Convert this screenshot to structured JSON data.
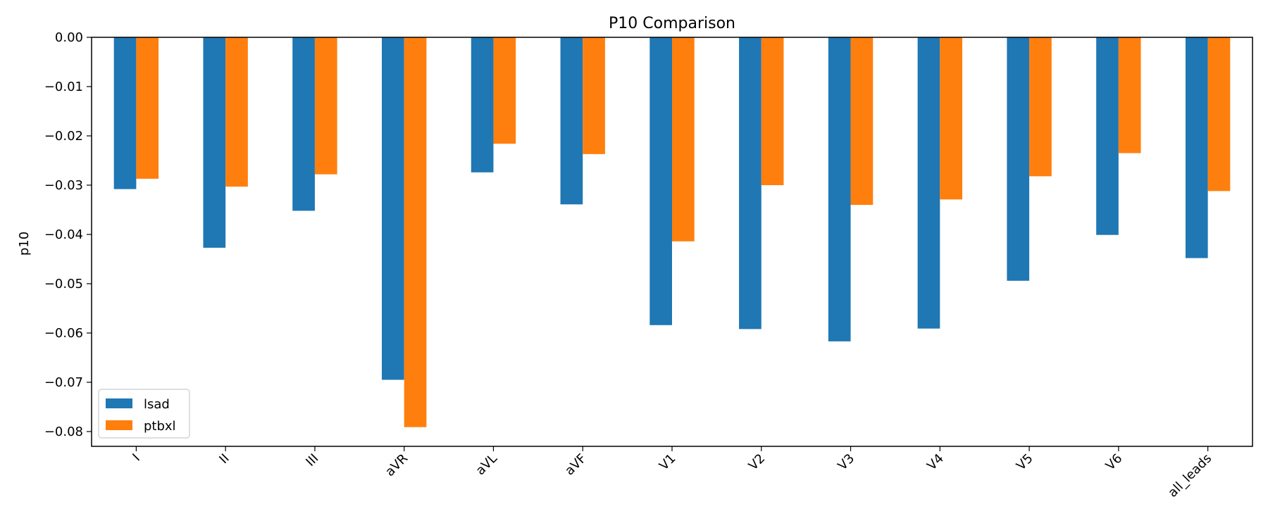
{
  "chart_data": {
    "type": "bar",
    "title": "P10 Comparison",
    "xlabel": "",
    "ylabel": "p10",
    "ylim": [
      -0.083,
      0.0
    ],
    "yticks": [
      "0.00",
      "−0.01",
      "−0.02",
      "−0.03",
      "−0.04",
      "−0.05",
      "−0.06",
      "−0.07",
      "−0.08"
    ],
    "ytick_values": [
      0.0,
      -0.01,
      -0.02,
      -0.03,
      -0.04,
      -0.05,
      -0.06,
      -0.07,
      -0.08
    ],
    "categories": [
      "I",
      "II",
      "III",
      "aVR",
      "aVL",
      "aVF",
      "V1",
      "V2",
      "V3",
      "V4",
      "V5",
      "V6",
      "all_leads"
    ],
    "series": [
      {
        "name": "lsad",
        "color": "#1f77b4",
        "values": [
          -0.0308,
          -0.0427,
          -0.0352,
          -0.0695,
          -0.0274,
          -0.0339,
          -0.0584,
          -0.0592,
          -0.0617,
          -0.0591,
          -0.0494,
          -0.0401,
          -0.0448
        ]
      },
      {
        "name": "ptbxl",
        "color": "#ff7f0e",
        "values": [
          -0.0287,
          -0.0303,
          -0.0278,
          -0.0791,
          -0.0216,
          -0.0237,
          -0.0414,
          -0.03,
          -0.034,
          -0.0329,
          -0.0282,
          -0.0235,
          -0.0312
        ]
      }
    ],
    "legend_position": "lower-left",
    "grid": false,
    "xtick_rotation": 45
  }
}
